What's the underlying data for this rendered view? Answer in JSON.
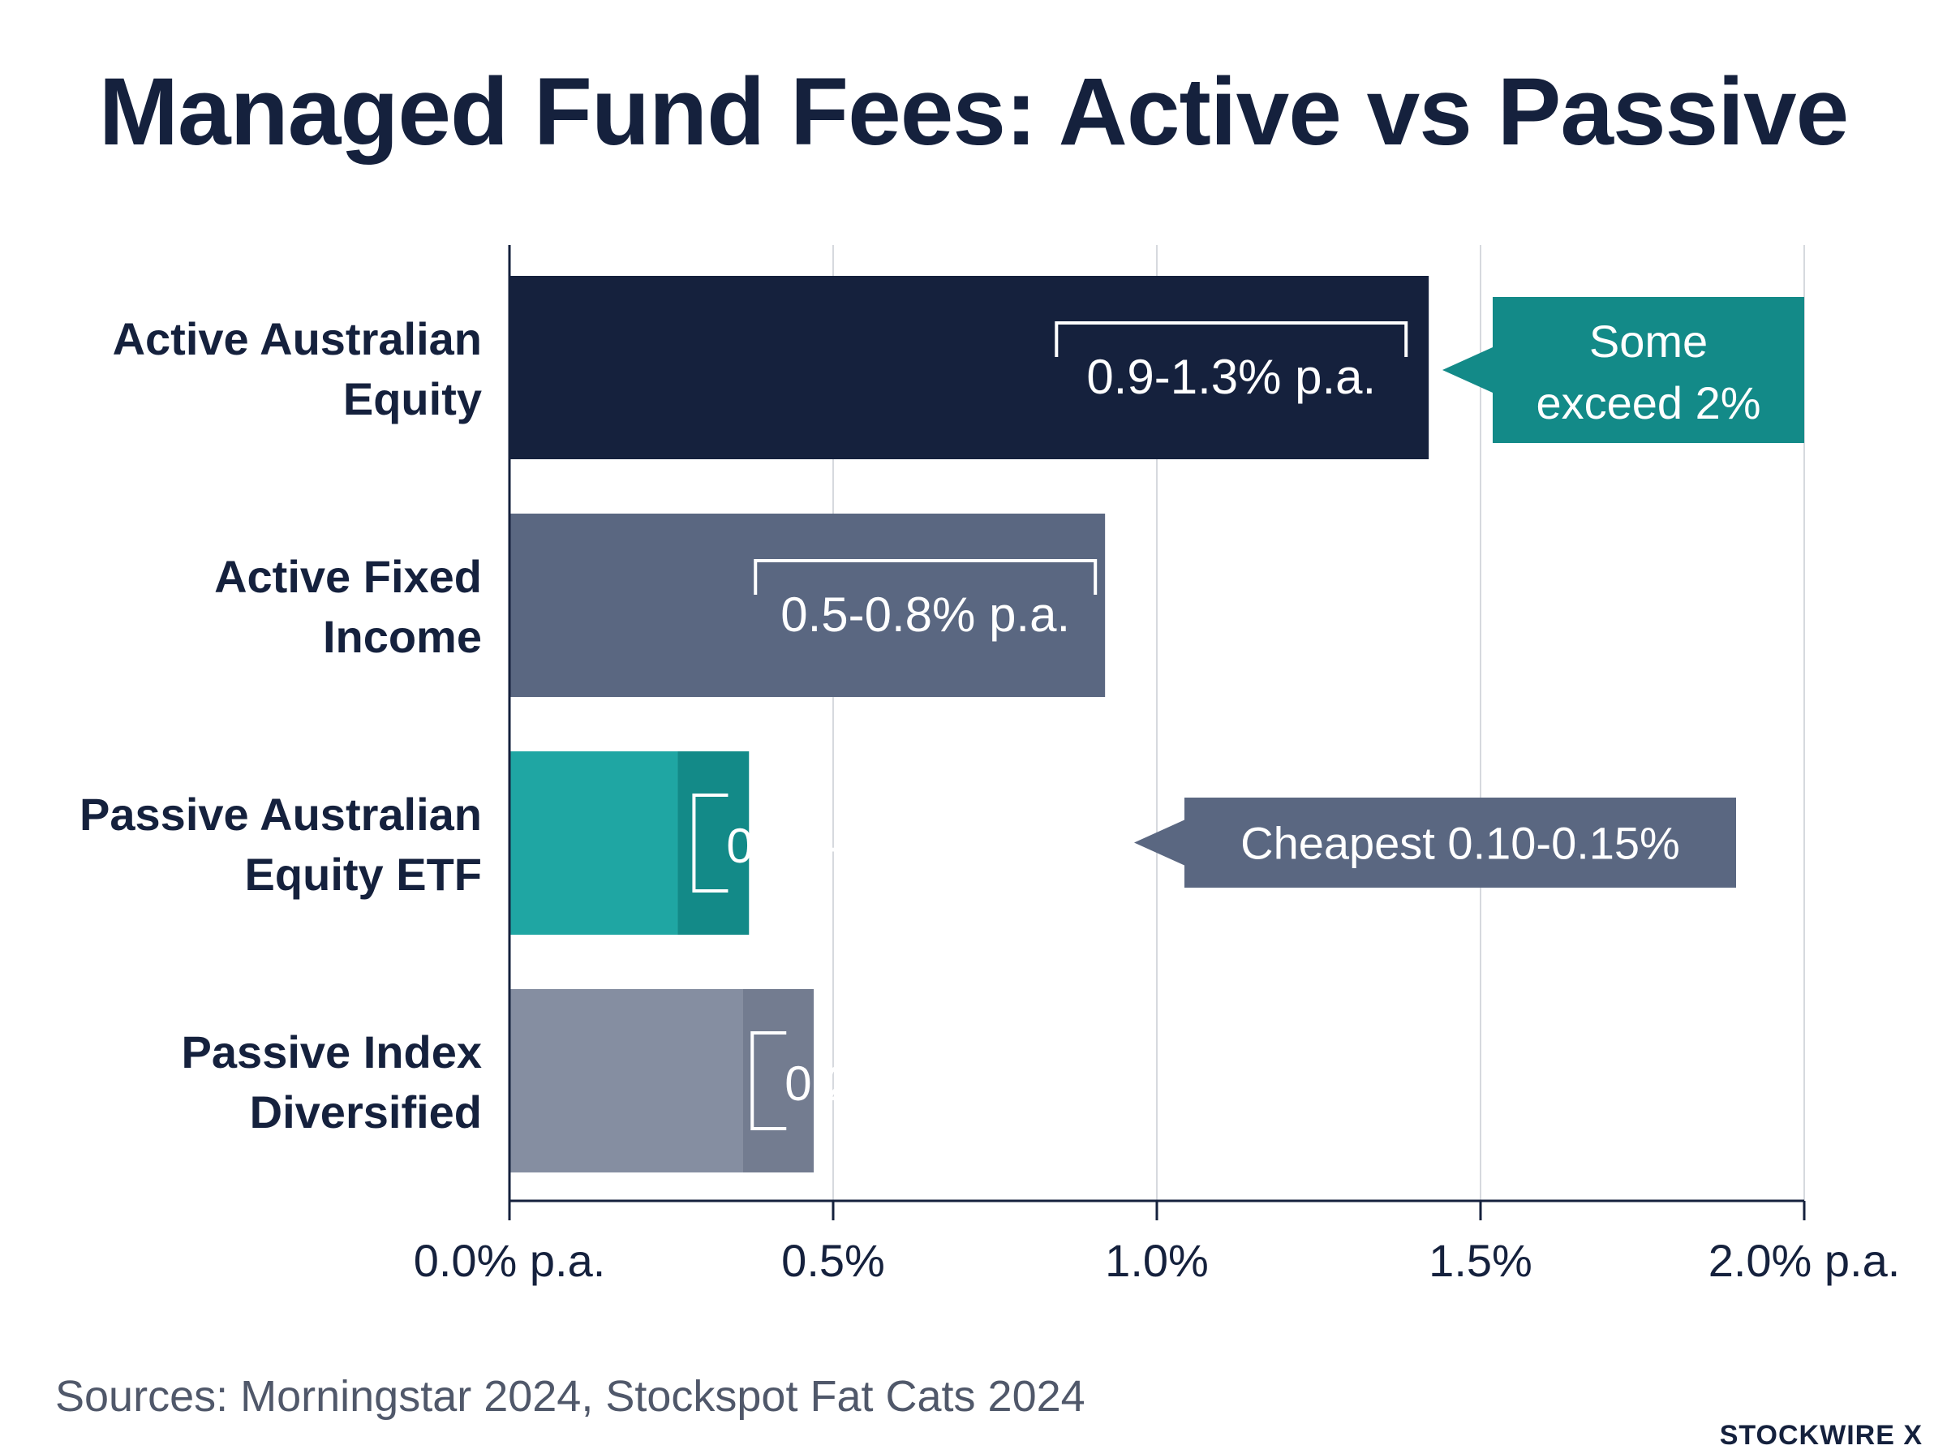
{
  "chart_data": {
    "type": "bar",
    "orientation": "horizontal",
    "title": "Managed Fund Fees: Active vs Passive",
    "categories": [
      [
        "Active Australian",
        "Equity"
      ],
      [
        "Active Fixed",
        "Income"
      ],
      [
        "Passive Australian",
        "Equity ETF"
      ],
      [
        "Passive Index",
        "Diversified"
      ]
    ],
    "ranges": [
      {
        "low": 0.9,
        "high": 1.3,
        "label": "0.9-1.3% p.a.",
        "color": "#15213d"
      },
      {
        "low": 0.5,
        "high": 0.8,
        "label": "0.5-0.8% p.a.",
        "color": "#5a6781"
      },
      {
        "low": 0.1,
        "high": 0.25,
        "label": "0.10-0.25% p.a.",
        "color": "#138a88",
        "light_color": "#1fa6a3"
      },
      {
        "low": 0.2,
        "high": 0.35,
        "label": "0.20-0.35% p.a.",
        "color": "#737c90",
        "light_color": "#858ea1"
      }
    ],
    "xlim": [
      0,
      2.0
    ],
    "x_ticks": [
      {
        "value": 0,
        "label": "0.0% p.a."
      },
      {
        "value": 0.5,
        "label": "0.5%"
      },
      {
        "value": 1.0,
        "label": "1.0%"
      },
      {
        "value": 1.5,
        "label": "1.5%"
      },
      {
        "value": 2.0,
        "label": "2.0% p.a."
      }
    ],
    "grid": true,
    "callouts": [
      {
        "category_index": 0,
        "lines": [
          "Some",
          "exceed 2%"
        ],
        "color": "#138a88"
      },
      {
        "category_index": 2,
        "lines": [
          "Cheapest 0.10-0.15%"
        ],
        "color": "#5a6781"
      }
    ]
  },
  "footer": {
    "sources": "Sources: Morningstar 2024, Stockspot Fat Cats 2024",
    "brand": "STOCKWIRE X"
  }
}
